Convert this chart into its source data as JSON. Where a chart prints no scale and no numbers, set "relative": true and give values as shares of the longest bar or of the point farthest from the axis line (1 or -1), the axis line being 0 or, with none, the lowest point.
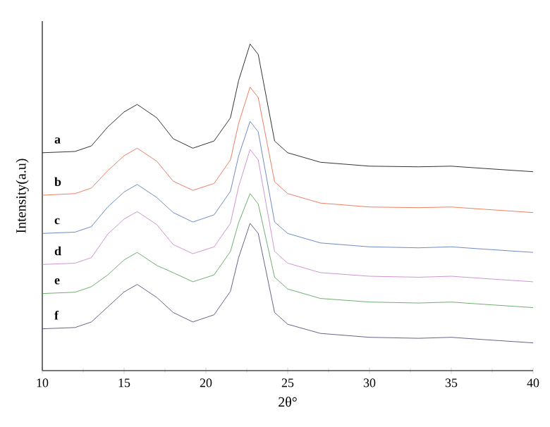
{
  "chart_data": {
    "type": "line",
    "relative": true,
    "xlabel": "2θ°",
    "ylabel": "Intensity(a.u)",
    "x": [
      10,
      12,
      13,
      14,
      15,
      15.8,
      17,
      18,
      19.2,
      20.5,
      21.5,
      22,
      22.7,
      23.2,
      24.2,
      25,
      27,
      30,
      33,
      35,
      37,
      40
    ],
    "xlim": [
      10,
      40
    ],
    "xticks": [
      10,
      15,
      20,
      25,
      30,
      35,
      40
    ],
    "marker": "none",
    "line_style": "solid",
    "series": [
      {
        "name": "a",
        "color": "#000000",
        "values": [
          0.667,
          0.671,
          0.688,
          0.746,
          0.792,
          0.815,
          0.774,
          0.71,
          0.681,
          0.703,
          0.774,
          0.888,
          1,
          0.968,
          0.703,
          0.667,
          0.638,
          0.626,
          0.624,
          0.626,
          0.619,
          0.609
        ]
      },
      {
        "name": "b",
        "color": "#e8603c",
        "values": [
          0.537,
          0.542,
          0.559,
          0.612,
          0.658,
          0.681,
          0.641,
          0.58,
          0.552,
          0.573,
          0.645,
          0.757,
          0.868,
          0.836,
          0.578,
          0.542,
          0.513,
          0.501,
          0.499,
          0.501,
          0.494,
          0.484
        ]
      },
      {
        "name": "c",
        "color": "#4a6fb5",
        "values": [
          0.42,
          0.424,
          0.441,
          0.501,
          0.547,
          0.57,
          0.53,
          0.484,
          0.455,
          0.477,
          0.549,
          0.657,
          0.763,
          0.731,
          0.455,
          0.42,
          0.391,
          0.379,
          0.376,
          0.379,
          0.372,
          0.362
        ]
      },
      {
        "name": "d",
        "color": "#c47ac8",
        "values": [
          0.325,
          0.329,
          0.346,
          0.418,
          0.464,
          0.487,
          0.447,
          0.386,
          0.358,
          0.379,
          0.451,
          0.563,
          0.677,
          0.645,
          0.365,
          0.329,
          0.3,
          0.289,
          0.286,
          0.289,
          0.282,
          0.272
        ]
      },
      {
        "name": "e",
        "color": "#4a9a4a",
        "values": [
          0.236,
          0.24,
          0.257,
          0.293,
          0.339,
          0.362,
          0.322,
          0.3,
          0.272,
          0.293,
          0.365,
          0.453,
          0.542,
          0.51,
          0.286,
          0.25,
          0.221,
          0.21,
          0.207,
          0.21,
          0.203,
          0.193
        ]
      },
      {
        "name": "f",
        "color": "#3c3c6e",
        "values": [
          0.128,
          0.132,
          0.149,
          0.195,
          0.241,
          0.264,
          0.224,
          0.178,
          0.149,
          0.171,
          0.243,
          0.346,
          0.451,
          0.42,
          0.178,
          0.142,
          0.114,
          0.102,
          0.099,
          0.102,
          0.095,
          0.085
        ]
      }
    ]
  }
}
